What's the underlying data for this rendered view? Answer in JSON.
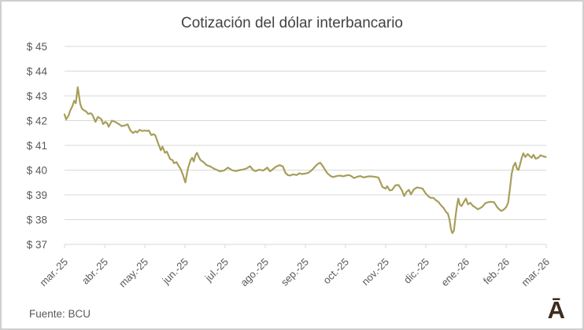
{
  "footer": {
    "source": "Fuente: BCU",
    "logo": "Ā"
  },
  "colors": {
    "line": "#A79E5A",
    "grid": "#D9D9D9",
    "axis_text": "#595959",
    "title_text": "#424242",
    "border": "#CFCFCF",
    "logo": "#3E2B1C",
    "background": "#FFFFFF"
  },
  "chart_data": {
    "type": "line",
    "title": "Cotización del dólar interbancario",
    "series_name": "dólar interbancario",
    "grid": "horizontal-only",
    "legend": "none",
    "xlim": [
      0,
      12
    ],
    "ylim": [
      37,
      45
    ],
    "x_tick_labels": [
      "mar.-25",
      "abr.-25",
      "may.-25",
      "jun.-25",
      "jul.-25",
      "ago.-25",
      "sep.-25",
      "oct.-25",
      "nov.-25",
      "dic.-25",
      "ene.-26",
      "feb.-26",
      "mar.-26"
    ],
    "y_ticks": [
      {
        "label": "$ 45",
        "value": 45
      },
      {
        "label": "$ 44",
        "value": 44
      },
      {
        "label": "$ 43",
        "value": 43
      },
      {
        "label": "$ 42",
        "value": 42
      },
      {
        "label": "$ 41",
        "value": 41
      },
      {
        "label": "$ 40",
        "value": 40
      },
      {
        "label": "$ 39",
        "value": 39
      },
      {
        "label": "$ 38",
        "value": 38
      },
      {
        "label": "$ 37",
        "value": 37
      }
    ],
    "points": [
      [
        0.0,
        42.25
      ],
      [
        0.04,
        42.05
      ],
      [
        0.1,
        42.2
      ],
      [
        0.14,
        42.4
      ],
      [
        0.2,
        42.6
      ],
      [
        0.24,
        42.8
      ],
      [
        0.28,
        42.7
      ],
      [
        0.31,
        43.1
      ],
      [
        0.33,
        43.35
      ],
      [
        0.37,
        42.9
      ],
      [
        0.39,
        42.68
      ],
      [
        0.43,
        42.5
      ],
      [
        0.47,
        42.43
      ],
      [
        0.53,
        42.38
      ],
      [
        0.59,
        42.27
      ],
      [
        0.65,
        42.3
      ],
      [
        0.69,
        42.25
      ],
      [
        0.77,
        41.95
      ],
      [
        0.83,
        42.15
      ],
      [
        0.88,
        42.1
      ],
      [
        0.92,
        42.05
      ],
      [
        0.96,
        41.86
      ],
      [
        1.02,
        41.95
      ],
      [
        1.06,
        41.9
      ],
      [
        1.1,
        41.75
      ],
      [
        1.18,
        42.0
      ],
      [
        1.26,
        41.95
      ],
      [
        1.36,
        41.85
      ],
      [
        1.42,
        41.78
      ],
      [
        1.5,
        41.8
      ],
      [
        1.57,
        41.85
      ],
      [
        1.64,
        41.6
      ],
      [
        1.71,
        41.5
      ],
      [
        1.77,
        41.57
      ],
      [
        1.81,
        41.52
      ],
      [
        1.87,
        41.63
      ],
      [
        1.94,
        41.58
      ],
      [
        2.0,
        41.6
      ],
      [
        2.06,
        41.58
      ],
      [
        2.1,
        41.6
      ],
      [
        2.16,
        41.42
      ],
      [
        2.22,
        41.45
      ],
      [
        2.26,
        41.4
      ],
      [
        2.34,
        41.05
      ],
      [
        2.4,
        40.8
      ],
      [
        2.44,
        40.95
      ],
      [
        2.5,
        40.7
      ],
      [
        2.55,
        40.75
      ],
      [
        2.63,
        40.45
      ],
      [
        2.69,
        40.4
      ],
      [
        2.73,
        40.28
      ],
      [
        2.79,
        40.32
      ],
      [
        2.85,
        40.15
      ],
      [
        2.89,
        40.05
      ],
      [
        2.95,
        39.8
      ],
      [
        3.01,
        39.5
      ],
      [
        3.05,
        39.85
      ],
      [
        3.08,
        40.1
      ],
      [
        3.14,
        40.4
      ],
      [
        3.18,
        40.5
      ],
      [
        3.22,
        40.35
      ],
      [
        3.26,
        40.6
      ],
      [
        3.3,
        40.7
      ],
      [
        3.34,
        40.55
      ],
      [
        3.38,
        40.42
      ],
      [
        3.48,
        40.3
      ],
      [
        3.54,
        40.2
      ],
      [
        3.63,
        40.15
      ],
      [
        3.73,
        40.05
      ],
      [
        3.81,
        40.0
      ],
      [
        3.87,
        39.95
      ],
      [
        3.97,
        39.98
      ],
      [
        4.07,
        40.1
      ],
      [
        4.17,
        40.0
      ],
      [
        4.26,
        39.96
      ],
      [
        4.36,
        40.0
      ],
      [
        4.46,
        40.03
      ],
      [
        4.55,
        40.08
      ],
      [
        4.62,
        40.16
      ],
      [
        4.7,
        40.0
      ],
      [
        4.76,
        39.96
      ],
      [
        4.85,
        40.02
      ],
      [
        4.95,
        39.98
      ],
      [
        5.05,
        40.1
      ],
      [
        5.12,
        39.95
      ],
      [
        5.2,
        40.05
      ],
      [
        5.28,
        40.15
      ],
      [
        5.36,
        40.2
      ],
      [
        5.44,
        40.15
      ],
      [
        5.5,
        39.9
      ],
      [
        5.56,
        39.8
      ],
      [
        5.62,
        39.78
      ],
      [
        5.7,
        39.83
      ],
      [
        5.78,
        39.8
      ],
      [
        5.85,
        39.87
      ],
      [
        5.92,
        39.84
      ],
      [
        6.0,
        39.86
      ],
      [
        6.08,
        39.9
      ],
      [
        6.16,
        40.0
      ],
      [
        6.23,
        40.12
      ],
      [
        6.31,
        40.25
      ],
      [
        6.37,
        40.3
      ],
      [
        6.44,
        40.15
      ],
      [
        6.5,
        39.98
      ],
      [
        6.56,
        39.85
      ],
      [
        6.64,
        39.75
      ],
      [
        6.7,
        39.72
      ],
      [
        6.78,
        39.76
      ],
      [
        6.86,
        39.78
      ],
      [
        6.94,
        39.75
      ],
      [
        7.01,
        39.78
      ],
      [
        7.09,
        39.8
      ],
      [
        7.15,
        39.75
      ],
      [
        7.21,
        39.68
      ],
      [
        7.29,
        39.73
      ],
      [
        7.37,
        39.76
      ],
      [
        7.45,
        39.7
      ],
      [
        7.52,
        39.73
      ],
      [
        7.6,
        39.75
      ],
      [
        7.68,
        39.74
      ],
      [
        7.76,
        39.72
      ],
      [
        7.82,
        39.7
      ],
      [
        7.86,
        39.55
      ],
      [
        7.92,
        39.32
      ],
      [
        8.0,
        39.25
      ],
      [
        8.04,
        39.35
      ],
      [
        8.1,
        39.18
      ],
      [
        8.16,
        39.2
      ],
      [
        8.24,
        39.38
      ],
      [
        8.32,
        39.4
      ],
      [
        8.4,
        39.2
      ],
      [
        8.46,
        38.95
      ],
      [
        8.52,
        39.12
      ],
      [
        8.58,
        39.2
      ],
      [
        8.63,
        39.02
      ],
      [
        8.7,
        39.22
      ],
      [
        8.78,
        39.3
      ],
      [
        8.86,
        39.28
      ],
      [
        8.92,
        39.25
      ],
      [
        9.0,
        39.05
      ],
      [
        9.06,
        38.95
      ],
      [
        9.12,
        38.88
      ],
      [
        9.19,
        38.88
      ],
      [
        9.25,
        38.78
      ],
      [
        9.31,
        38.72
      ],
      [
        9.39,
        38.56
      ],
      [
        9.45,
        38.45
      ],
      [
        9.51,
        38.3
      ],
      [
        9.55,
        38.25
      ],
      [
        9.59,
        38.0
      ],
      [
        9.63,
        37.6
      ],
      [
        9.66,
        37.45
      ],
      [
        9.7,
        37.55
      ],
      [
        9.74,
        38.1
      ],
      [
        9.77,
        38.5
      ],
      [
        9.81,
        38.85
      ],
      [
        9.85,
        38.6
      ],
      [
        9.89,
        38.55
      ],
      [
        9.95,
        38.72
      ],
      [
        10.0,
        38.85
      ],
      [
        10.05,
        38.62
      ],
      [
        10.11,
        38.68
      ],
      [
        10.17,
        38.56
      ],
      [
        10.23,
        38.5
      ],
      [
        10.29,
        38.42
      ],
      [
        10.35,
        38.46
      ],
      [
        10.41,
        38.52
      ],
      [
        10.48,
        38.66
      ],
      [
        10.55,
        38.7
      ],
      [
        10.62,
        38.72
      ],
      [
        10.7,
        38.7
      ],
      [
        10.78,
        38.5
      ],
      [
        10.84,
        38.4
      ],
      [
        10.88,
        38.35
      ],
      [
        10.94,
        38.4
      ],
      [
        11.0,
        38.5
      ],
      [
        11.05,
        38.68
      ],
      [
        11.1,
        39.3
      ],
      [
        11.14,
        39.85
      ],
      [
        11.18,
        40.15
      ],
      [
        11.23,
        40.3
      ],
      [
        11.27,
        40.06
      ],
      [
        11.31,
        40.0
      ],
      [
        11.35,
        40.25
      ],
      [
        11.39,
        40.5
      ],
      [
        11.43,
        40.68
      ],
      [
        11.48,
        40.53
      ],
      [
        11.54,
        40.65
      ],
      [
        11.6,
        40.55
      ],
      [
        11.64,
        40.5
      ],
      [
        11.68,
        40.62
      ],
      [
        11.74,
        40.46
      ],
      [
        11.8,
        40.5
      ],
      [
        11.86,
        40.6
      ],
      [
        11.92,
        40.56
      ],
      [
        11.99,
        40.53
      ]
    ]
  }
}
